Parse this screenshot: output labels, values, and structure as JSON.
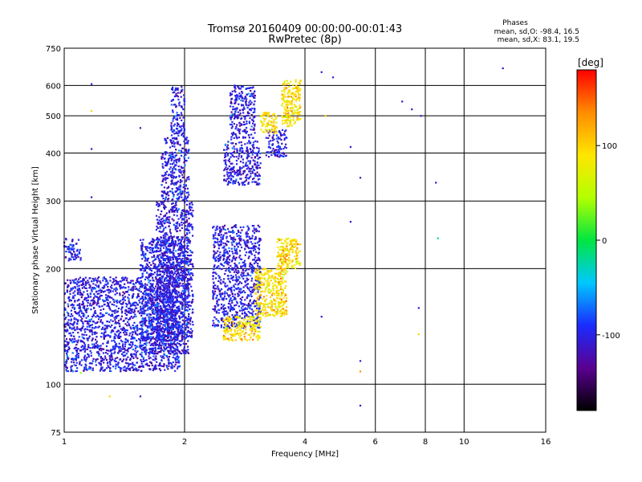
{
  "chart_data": {
    "type": "scatter",
    "title": "Tromsø 20160409 00:00:00-00:01:43",
    "subtitle": "RwPretec (8p)",
    "xlabel": "Frequency [MHz]",
    "ylabel": "Stationary phase Virtual Height [km]",
    "x_scale": "log",
    "y_scale": "log",
    "xlim": [
      1,
      16
    ],
    "ylim": [
      75,
      750
    ],
    "x_ticks": [
      1,
      2,
      4,
      6,
      8,
      10,
      16
    ],
    "y_ticks": [
      75,
      100,
      200,
      300,
      400,
      500,
      600,
      750
    ],
    "grid": true,
    "stats": {
      "heading": "Phases",
      "line_o": "mean, sd,O: -98.4, 16.5",
      "line_x": "mean, sd,X:  83.1, 19.5"
    },
    "colorbar": {
      "label": "[deg]",
      "ticks": [
        "100",
        "0",
        "-100"
      ],
      "tick_values": [
        100,
        0,
        -100
      ],
      "range": [
        -180,
        180
      ],
      "colors": [
        "#000000",
        "#5a0090",
        "#1a2cff",
        "#00c8ff",
        "#00e640",
        "#b4ff00",
        "#ffe600",
        "#ff8c00",
        "#ff0000"
      ]
    },
    "series": [
      {
        "mode": "O",
        "description": "main O-mode trace and spread, phase approx -100 deg",
        "clusters": [
          {
            "f": [
              1.0,
              1.95
            ],
            "h": [
              108,
              190
            ]
          },
          {
            "f": [
              1.55,
              2.05
            ],
            "h": [
              120,
              240
            ]
          },
          {
            "f": [
              1.7,
              2.1
            ],
            "h": [
              130,
              300
            ]
          },
          {
            "f": [
              1.75,
              2.05
            ],
            "h": [
              300,
              440
            ]
          },
          {
            "f": [
              1.85,
              2.0
            ],
            "h": [
              440,
              600
            ]
          },
          {
            "f": [
              2.5,
              3.1
            ],
            "h": [
              330,
              430
            ]
          },
          {
            "f": [
              2.6,
              3.0
            ],
            "h": [
              430,
              600
            ]
          },
          {
            "f": [
              2.35,
              3.1
            ],
            "h": [
              140,
              260
            ]
          },
          {
            "f": [
              3.2,
              3.6
            ],
            "h": [
              390,
              460
            ]
          },
          {
            "f": [
              1.0,
              1.1
            ],
            "h": [
              210,
              240
            ]
          }
        ]
      },
      {
        "mode": "X",
        "description": "X-mode trace, phase approx +90 deg",
        "clusters": [
          {
            "f": [
              2.5,
              3.1
            ],
            "h": [
              130,
              150
            ]
          },
          {
            "f": [
              3.0,
              3.6
            ],
            "h": [
              150,
              200
            ]
          },
          {
            "f": [
              3.4,
              3.9
            ],
            "h": [
              200,
              240
            ]
          },
          {
            "f": [
              3.1,
              3.4
            ],
            "h": [
              450,
              510
            ]
          },
          {
            "f": [
              3.5,
              3.9
            ],
            "h": [
              470,
              620
            ]
          }
        ]
      }
    ],
    "sparse_points": [
      {
        "f": 1.17,
        "h": 605,
        "p": -110
      },
      {
        "f": 1.17,
        "h": 515,
        "p": 100
      },
      {
        "f": 1.17,
        "h": 410,
        "p": -110
      },
      {
        "f": 1.17,
        "h": 307,
        "p": -110
      },
      {
        "f": 1.3,
        "h": 93,
        "p": 100
      },
      {
        "f": 1.55,
        "h": 465,
        "p": -110
      },
      {
        "f": 1.55,
        "h": 93,
        "p": -110
      },
      {
        "f": 4.4,
        "h": 650,
        "p": -110
      },
      {
        "f": 4.7,
        "h": 630,
        "p": -110
      },
      {
        "f": 4.5,
        "h": 500,
        "p": 100
      },
      {
        "f": 5.2,
        "h": 415,
        "p": -110
      },
      {
        "f": 5.5,
        "h": 345,
        "p": -110
      },
      {
        "f": 5.2,
        "h": 265,
        "p": -110
      },
      {
        "f": 4.4,
        "h": 150,
        "p": -110
      },
      {
        "f": 5.5,
        "h": 115,
        "p": -110
      },
      {
        "f": 5.5,
        "h": 108,
        "p": 130
      },
      {
        "f": 5.5,
        "h": 88,
        "p": -110
      },
      {
        "f": 7.0,
        "h": 545,
        "p": -110
      },
      {
        "f": 7.4,
        "h": 520,
        "p": -110
      },
      {
        "f": 7.8,
        "h": 500,
        "p": -110
      },
      {
        "f": 8.5,
        "h": 335,
        "p": -110
      },
      {
        "f": 8.6,
        "h": 240,
        "p": -20
      },
      {
        "f": 7.7,
        "h": 158,
        "p": -110
      },
      {
        "f": 7.7,
        "h": 135,
        "p": 100
      },
      {
        "f": 12.5,
        "h": 665,
        "p": -110
      },
      {
        "f": 1.1,
        "h": 107,
        "p": 40
      },
      {
        "f": 1.0,
        "h": 234,
        "p": -110
      }
    ]
  }
}
